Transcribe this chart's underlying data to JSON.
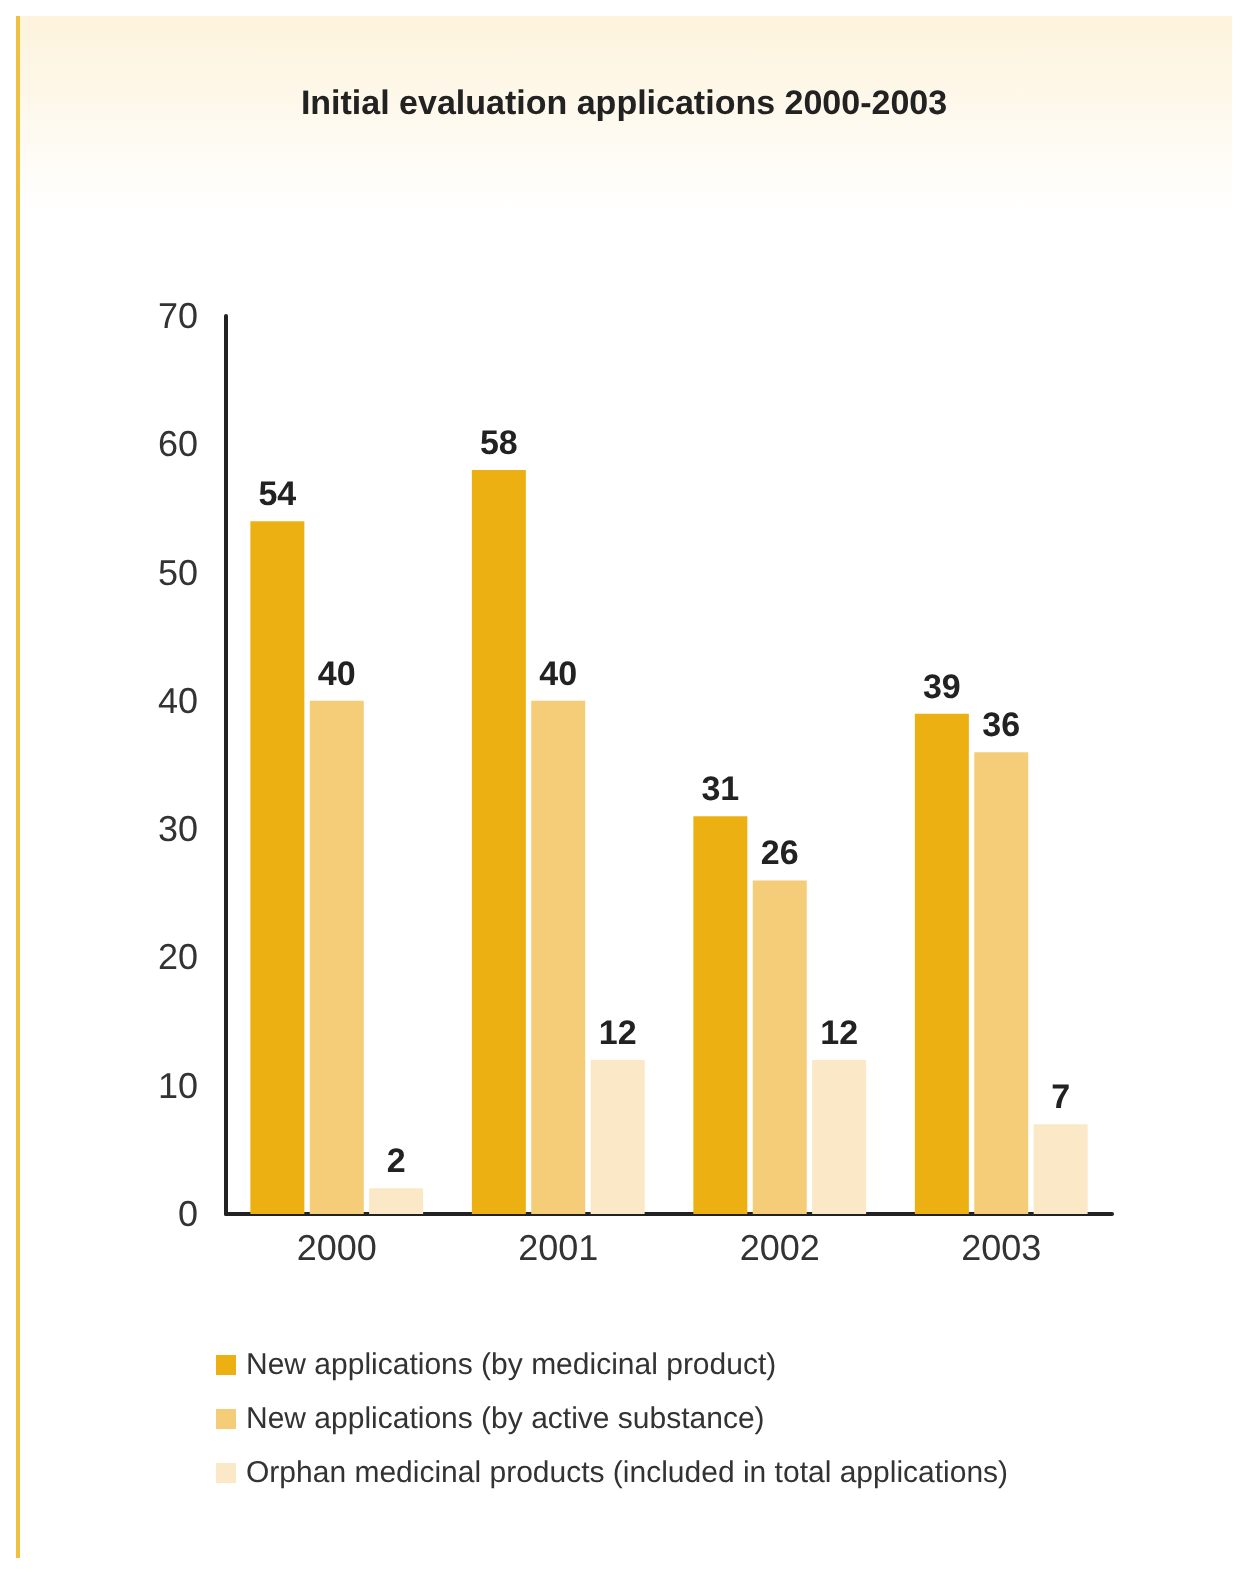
{
  "chart_data": {
    "type": "bar",
    "title": "Initial evaluation applications 2000-2003",
    "categories": [
      "2000",
      "2001",
      "2002",
      "2003"
    ],
    "series": [
      {
        "name": "New applications (by medicinal product)",
        "color": "#ecb012",
        "values": [
          54,
          58,
          31,
          39
        ]
      },
      {
        "name": "New applications (by active substance)",
        "color": "#f5cc78",
        "values": [
          40,
          40,
          26,
          36
        ]
      },
      {
        "name": "Orphan medicinal products (included in total applications)",
        "color": "#fbe8c6",
        "values": [
          2,
          12,
          12,
          7
        ]
      }
    ],
    "ylim": [
      0,
      70
    ],
    "yticks": [
      0,
      10,
      20,
      30,
      40,
      50,
      60,
      70
    ],
    "grid": false,
    "legend": "bottom",
    "data_labels": true
  }
}
